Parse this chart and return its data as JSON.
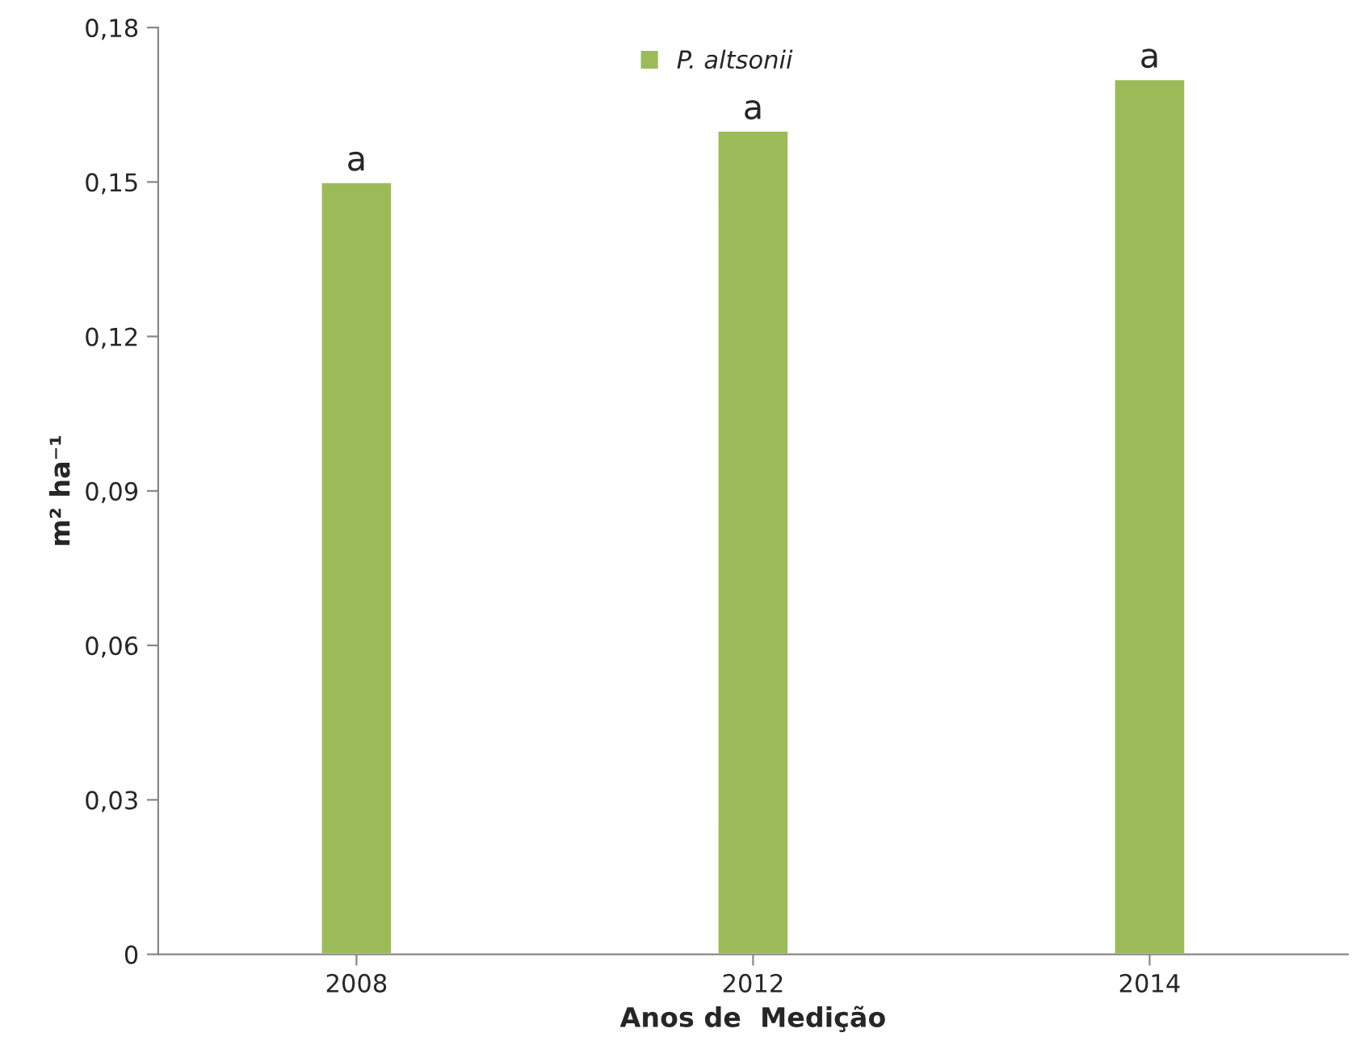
{
  "chart_data": {
    "type": "bar",
    "xlabel": "Anos de  Medição",
    "ylabel": "m² ha⁻¹",
    "categories": [
      "2008",
      "2012",
      "2014"
    ],
    "series": [
      {
        "name": "P. altsonii",
        "color": "#9bbb59",
        "values": [
          0.15,
          0.16,
          0.17
        ]
      }
    ],
    "ylim": [
      0,
      0.18
    ],
    "yticks": [
      {
        "value": 0,
        "label": "0"
      },
      {
        "value": 0.03,
        "label": "0,03"
      },
      {
        "value": 0.06,
        "label": "0,06"
      },
      {
        "value": 0.09,
        "label": "0,09"
      },
      {
        "value": 0.12,
        "label": "0,12"
      },
      {
        "value": 0.15,
        "label": "0,15"
      },
      {
        "value": 0.18,
        "label": "0,18"
      }
    ],
    "annotations": [
      {
        "text": "a",
        "x": "2008",
        "y": 0.15
      },
      {
        "text": "a",
        "x": "2012",
        "y": 0.16
      },
      {
        "text": "a",
        "x": "2014",
        "y": 0.17
      }
    ],
    "legend": "top",
    "grid": false
  }
}
